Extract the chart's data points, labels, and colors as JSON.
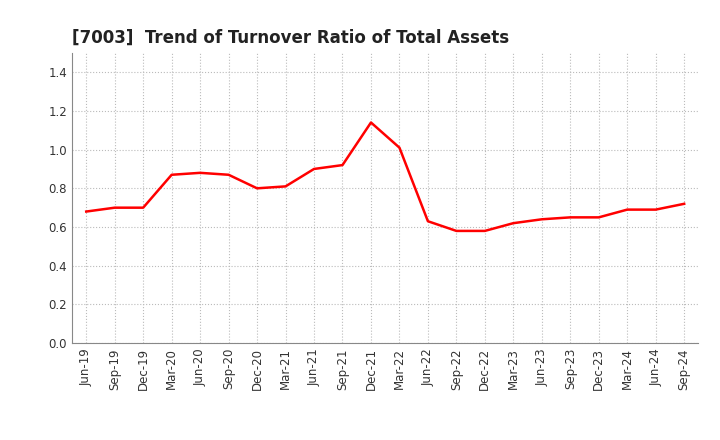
{
  "title": "[7003]  Trend of Turnover Ratio of Total Assets",
  "x_labels": [
    "Jun-19",
    "Sep-19",
    "Dec-19",
    "Mar-20",
    "Jun-20",
    "Sep-20",
    "Dec-20",
    "Mar-21",
    "Jun-21",
    "Sep-21",
    "Dec-21",
    "Mar-22",
    "Jun-22",
    "Sep-22",
    "Dec-22",
    "Mar-23",
    "Jun-23",
    "Sep-23",
    "Dec-23",
    "Mar-24",
    "Jun-24",
    "Sep-24"
  ],
  "y_values": [
    0.68,
    0.7,
    0.7,
    0.87,
    0.88,
    0.87,
    0.8,
    0.81,
    0.9,
    0.92,
    1.14,
    1.01,
    0.63,
    0.58,
    0.58,
    0.62,
    0.64,
    0.65,
    0.65,
    0.69,
    0.69,
    0.72
  ],
  "line_color": "#FF0000",
  "line_width": 1.8,
  "ylim": [
    0.0,
    1.5
  ],
  "yticks": [
    0.0,
    0.2,
    0.4,
    0.6,
    0.8,
    1.0,
    1.2,
    1.4
  ],
  "grid_color": "#bbbbbb",
  "background_color": "#ffffff",
  "title_fontsize": 12,
  "tick_fontsize": 8.5,
  "title_color": "#222222"
}
